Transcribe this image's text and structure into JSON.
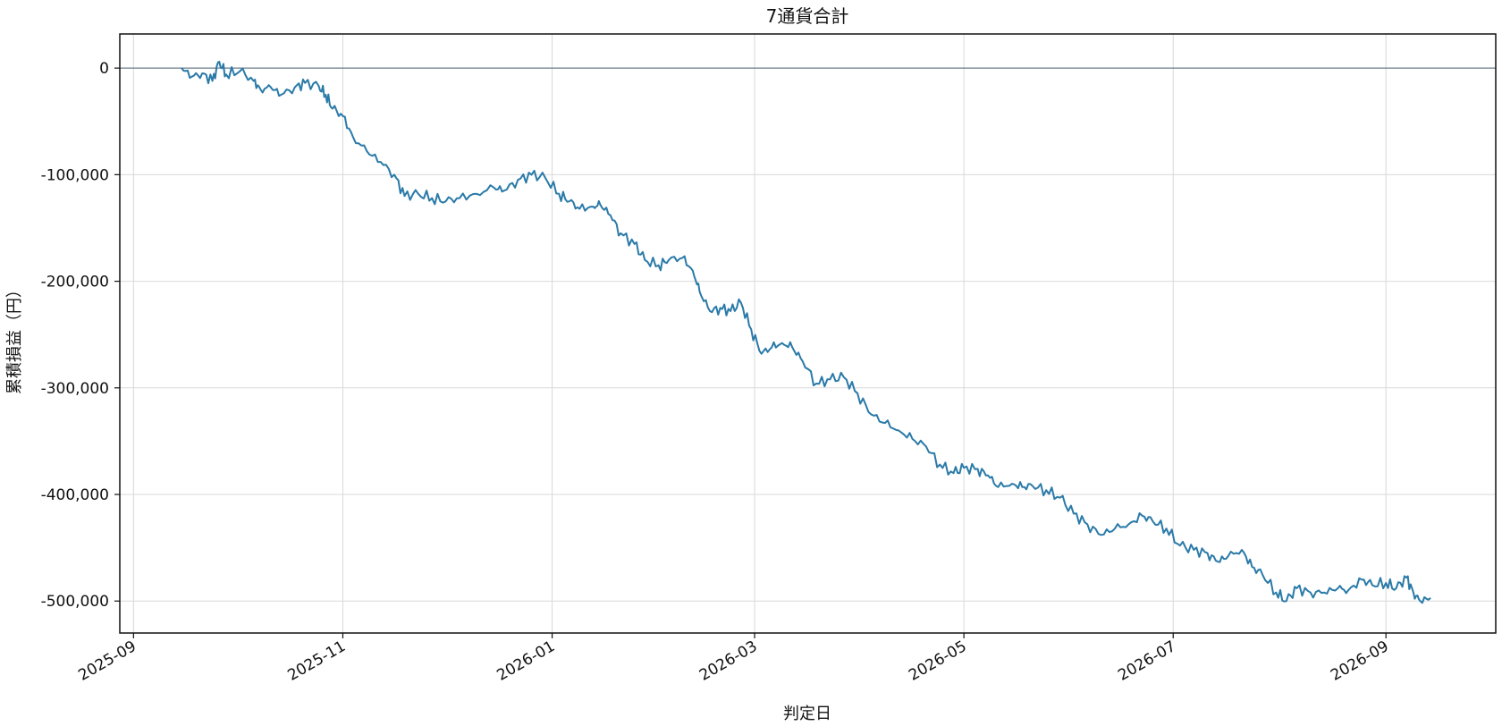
{
  "chart_data": {
    "type": "line",
    "title": "7通貨合計",
    "xlabel": "判定日",
    "ylabel": "累積損益（円）",
    "x_range": [
      "2025-08-28",
      "2026-10-03"
    ],
    "ylim": [
      -530000,
      32000
    ],
    "grid": true,
    "x_ticks": [
      "2025-09-01",
      "2025-11-01",
      "2026-01-01",
      "2026-03-01",
      "2026-05-01",
      "2026-07-01",
      "2026-09-01"
    ],
    "x_tick_labels": [
      "2025-09",
      "2025-11",
      "2026-01",
      "2026-03",
      "2026-05",
      "2026-07",
      "2026-09"
    ],
    "y_ticks": [
      0,
      -100000,
      -200000,
      -300000,
      -400000,
      -500000
    ],
    "y_tick_labels": [
      "0",
      "-100,000",
      "-200,000",
      "-300,000",
      "-400,000",
      "-500,000"
    ],
    "reference_line": 0,
    "series": [
      {
        "color": "#2a7aa8",
        "points": [
          [
            "2025-09-15",
            0
          ],
          [
            "2025-09-18",
            -8000
          ],
          [
            "2025-09-21",
            -5000
          ],
          [
            "2025-09-24",
            -12000
          ],
          [
            "2025-09-26",
            6000
          ],
          [
            "2025-09-28",
            -6000
          ],
          [
            "2025-10-02",
            -3000
          ],
          [
            "2025-10-06",
            -12000
          ],
          [
            "2025-10-08",
            -20000
          ],
          [
            "2025-10-11",
            -18000
          ],
          [
            "2025-10-14",
            -25000
          ],
          [
            "2025-10-18",
            -18000
          ],
          [
            "2025-10-21",
            -14000
          ],
          [
            "2025-10-25",
            -17000
          ],
          [
            "2025-10-27",
            -25000
          ],
          [
            "2025-10-29",
            -38000
          ],
          [
            "2025-11-01",
            -45000
          ],
          [
            "2025-11-04",
            -65000
          ],
          [
            "2025-11-08",
            -78000
          ],
          [
            "2025-11-12",
            -88000
          ],
          [
            "2025-11-16",
            -100000
          ],
          [
            "2025-11-19",
            -120000
          ],
          [
            "2025-11-23",
            -118000
          ],
          [
            "2025-11-27",
            -122000
          ],
          [
            "2025-12-01",
            -125000
          ],
          [
            "2025-12-05",
            -122000
          ],
          [
            "2025-12-10",
            -118000
          ],
          [
            "2025-12-15",
            -112000
          ],
          [
            "2025-12-18",
            -115000
          ],
          [
            "2025-12-22",
            -105000
          ],
          [
            "2025-12-26",
            -100000
          ],
          [
            "2025-12-30",
            -103000
          ],
          [
            "2026-01-03",
            -118000
          ],
          [
            "2026-01-06",
            -125000
          ],
          [
            "2026-01-09",
            -132000
          ],
          [
            "2026-01-13",
            -130000
          ],
          [
            "2026-01-15",
            -128000
          ],
          [
            "2026-01-18",
            -138000
          ],
          [
            "2026-01-21",
            -155000
          ],
          [
            "2026-01-25",
            -165000
          ],
          [
            "2026-01-28",
            -180000
          ],
          [
            "2026-02-01",
            -185000
          ],
          [
            "2026-02-04",
            -180000
          ],
          [
            "2026-02-08",
            -178000
          ],
          [
            "2026-02-11",
            -190000
          ],
          [
            "2026-02-13",
            -210000
          ],
          [
            "2026-02-16",
            -228000
          ],
          [
            "2026-02-19",
            -225000
          ],
          [
            "2026-02-22",
            -228000
          ],
          [
            "2026-02-25",
            -220000
          ],
          [
            "2026-02-28",
            -245000
          ],
          [
            "2026-03-03",
            -268000
          ],
          [
            "2026-03-06",
            -262000
          ],
          [
            "2026-03-09",
            -258000
          ],
          [
            "2026-03-12",
            -262000
          ],
          [
            "2026-03-15",
            -275000
          ],
          [
            "2026-03-19",
            -296000
          ],
          [
            "2026-03-23",
            -292000
          ],
          [
            "2026-03-27",
            -290000
          ],
          [
            "2026-03-31",
            -305000
          ],
          [
            "2026-04-04",
            -325000
          ],
          [
            "2026-04-08",
            -333000
          ],
          [
            "2026-04-12",
            -340000
          ],
          [
            "2026-04-16",
            -348000
          ],
          [
            "2026-04-20",
            -355000
          ],
          [
            "2026-04-24",
            -372000
          ],
          [
            "2026-04-28",
            -380000
          ],
          [
            "2026-05-01",
            -375000
          ],
          [
            "2026-05-05",
            -376000
          ],
          [
            "2026-05-08",
            -382000
          ],
          [
            "2026-05-11",
            -393000
          ],
          [
            "2026-05-15",
            -390000
          ],
          [
            "2026-05-18",
            -393000
          ],
          [
            "2026-05-21",
            -392000
          ],
          [
            "2026-05-25",
            -396000
          ],
          [
            "2026-05-29",
            -403000
          ],
          [
            "2026-06-02",
            -418000
          ],
          [
            "2026-06-06",
            -428000
          ],
          [
            "2026-06-10",
            -438000
          ],
          [
            "2026-06-14",
            -432000
          ],
          [
            "2026-06-18",
            -428000
          ],
          [
            "2026-06-22",
            -420000
          ],
          [
            "2026-06-25",
            -425000
          ],
          [
            "2026-06-29",
            -432000
          ],
          [
            "2026-07-03",
            -448000
          ],
          [
            "2026-07-07",
            -452000
          ],
          [
            "2026-07-11",
            -455000
          ],
          [
            "2026-07-14",
            -463000
          ],
          [
            "2026-07-17",
            -458000
          ],
          [
            "2026-07-21",
            -452000
          ],
          [
            "2026-07-24",
            -468000
          ],
          [
            "2026-07-27",
            -475000
          ],
          [
            "2026-07-31",
            -492000
          ],
          [
            "2026-08-03",
            -500000
          ],
          [
            "2026-08-06",
            -488000
          ],
          [
            "2026-08-10",
            -492000
          ],
          [
            "2026-08-14",
            -492000
          ],
          [
            "2026-08-18",
            -488000
          ],
          [
            "2026-08-21",
            -490000
          ],
          [
            "2026-08-25",
            -480000
          ],
          [
            "2026-08-28",
            -485000
          ],
          [
            "2026-09-01",
            -483000
          ],
          [
            "2026-09-04",
            -488000
          ],
          [
            "2026-09-07",
            -478000
          ],
          [
            "2026-09-09",
            -492000
          ],
          [
            "2026-09-11",
            -500000
          ],
          [
            "2026-09-14",
            -497000
          ]
        ]
      }
    ]
  }
}
